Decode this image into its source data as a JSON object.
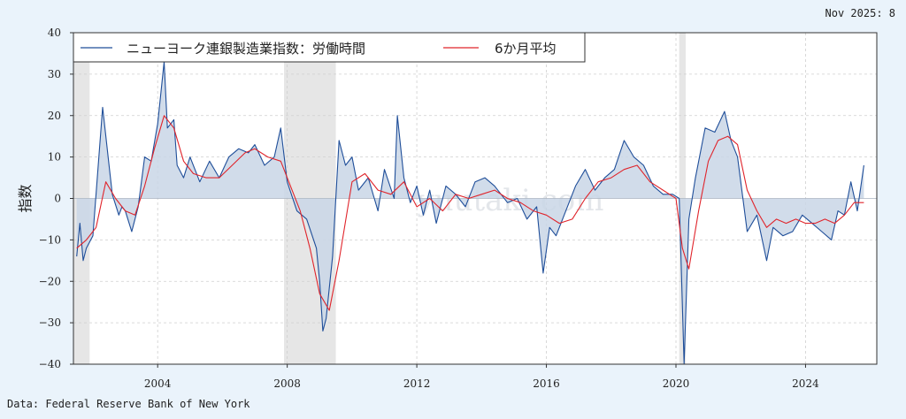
{
  "latest_label": "Nov 2025: 8",
  "source": "Data: Federal Reserve Bank of New York",
  "watermark": "yuutaki.com",
  "colors": {
    "series": "#1f4e99",
    "ma": "#e0242b",
    "fill": "#c9d6e6",
    "recession": "#e6e6e6",
    "grid": "#cfcfcf",
    "bg": "#eaf3fb"
  },
  "chart_data": {
    "type": "line",
    "title": "",
    "xlabel": "",
    "ylabel": "指数",
    "ylim": [
      -40,
      40
    ],
    "yticks": [
      -40,
      -30,
      -20,
      -10,
      0,
      10,
      20,
      30,
      40
    ],
    "xlim": [
      2001.4,
      2026.2
    ],
    "xticks": [
      2004,
      2008,
      2012,
      2016,
      2020,
      2024
    ],
    "grid": true,
    "legend_position": "top-left",
    "recessions": [
      [
        2001.2,
        2001.9
      ],
      [
        2007.9,
        2009.5
      ],
      [
        2020.1,
        2020.3
      ]
    ],
    "series": [
      {
        "name": "ニューヨーク連銀製造業指数：労働時間",
        "x": [
          2001.5,
          2001.6,
          2001.7,
          2001.8,
          2002.0,
          2002.3,
          2002.6,
          2002.8,
          2002.9,
          2003.0,
          2003.2,
          2003.4,
          2003.6,
          2003.8,
          2004.0,
          2004.2,
          2004.3,
          2004.5,
          2004.6,
          2004.8,
          2005.0,
          2005.3,
          2005.6,
          2005.9,
          2006.2,
          2006.5,
          2006.8,
          2007.0,
          2007.3,
          2007.6,
          2007.8,
          2008.0,
          2008.3,
          2008.6,
          2008.9,
          2009.0,
          2009.1,
          2009.2,
          2009.4,
          2009.6,
          2009.8,
          2010.0,
          2010.2,
          2010.5,
          2010.8,
          2011.0,
          2011.3,
          2011.4,
          2011.6,
          2011.8,
          2012.0,
          2012.2,
          2012.4,
          2012.6,
          2012.9,
          2013.2,
          2013.5,
          2013.8,
          2014.1,
          2014.4,
          2014.8,
          2015.1,
          2015.4,
          2015.7,
          2015.9,
          2016.1,
          2016.3,
          2016.6,
          2016.9,
          2017.2,
          2017.5,
          2017.8,
          2018.1,
          2018.4,
          2018.7,
          2019.0,
          2019.3,
          2019.6,
          2019.9,
          2020.1,
          2020.25,
          2020.4,
          2020.6,
          2020.9,
          2021.2,
          2021.5,
          2021.7,
          2021.9,
          2022.2,
          2022.5,
          2022.8,
          2023.0,
          2023.3,
          2023.6,
          2023.9,
          2024.2,
          2024.5,
          2024.8,
          2025.0,
          2025.2,
          2025.4,
          2025.6,
          2025.8
        ],
        "values": [
          -14,
          -6,
          -15,
          -12,
          -9,
          22,
          1,
          -4,
          -2,
          -3,
          -8,
          -2,
          10,
          9,
          18,
          33,
          17,
          19,
          8,
          5,
          10,
          4,
          9,
          5,
          10,
          12,
          11,
          13,
          8,
          10,
          17,
          4,
          -3,
          -5,
          -12,
          -20,
          -32,
          -29,
          -14,
          14,
          8,
          10,
          2,
          5,
          -3,
          7,
          0,
          20,
          5,
          -1,
          3,
          -4,
          2,
          -6,
          3,
          1,
          -2,
          4,
          5,
          3,
          -1,
          0,
          -5,
          -2,
          -18,
          -7,
          -9,
          -3,
          3,
          7,
          2,
          5,
          7,
          14,
          10,
          8,
          3,
          1,
          1,
          0,
          -42,
          -5,
          5,
          17,
          16,
          21,
          14,
          10,
          -8,
          -4,
          -15,
          -7,
          -9,
          -8,
          -4,
          -6,
          -8,
          -10,
          -3,
          -4,
          4,
          -3,
          8
        ]
      },
      {
        "name": "6か月平均",
        "x": [
          2001.5,
          2001.8,
          2002.1,
          2002.4,
          2002.7,
          2003.0,
          2003.3,
          2003.6,
          2003.9,
          2004.2,
          2004.5,
          2004.8,
          2005.1,
          2005.5,
          2005.9,
          2006.3,
          2006.7,
          2007.0,
          2007.4,
          2007.8,
          2008.1,
          2008.4,
          2008.7,
          2009.0,
          2009.3,
          2009.6,
          2010.0,
          2010.4,
          2010.8,
          2011.2,
          2011.6,
          2012.0,
          2012.4,
          2012.8,
          2013.2,
          2013.6,
          2014.0,
          2014.4,
          2014.8,
          2015.2,
          2015.6,
          2016.0,
          2016.4,
          2016.8,
          2017.2,
          2017.6,
          2018.0,
          2018.4,
          2018.8,
          2019.2,
          2019.6,
          2020.0,
          2020.2,
          2020.4,
          2020.7,
          2021.0,
          2021.3,
          2021.6,
          2021.9,
          2022.2,
          2022.5,
          2022.8,
          2023.1,
          2023.4,
          2023.7,
          2024.0,
          2024.3,
          2024.6,
          2024.9,
          2025.2,
          2025.5,
          2025.8
        ],
        "values": [
          -12,
          -10,
          -7,
          4,
          0,
          -3,
          -4,
          3,
          12,
          20,
          17,
          9,
          6,
          5,
          5,
          8,
          11,
          12,
          10,
          9,
          3,
          -3,
          -12,
          -23,
          -27,
          -15,
          4,
          6,
          2,
          1,
          4,
          -2,
          0,
          -3,
          1,
          0,
          1,
          2,
          0,
          -1,
          -3,
          -4,
          -6,
          -5,
          0,
          4,
          5,
          7,
          8,
          4,
          2,
          0,
          -12,
          -17,
          -3,
          9,
          14,
          15,
          13,
          2,
          -3,
          -7,
          -5,
          -6,
          -5,
          -6,
          -6,
          -5,
          -6,
          -4,
          -1,
          -1
        ]
      }
    ]
  }
}
